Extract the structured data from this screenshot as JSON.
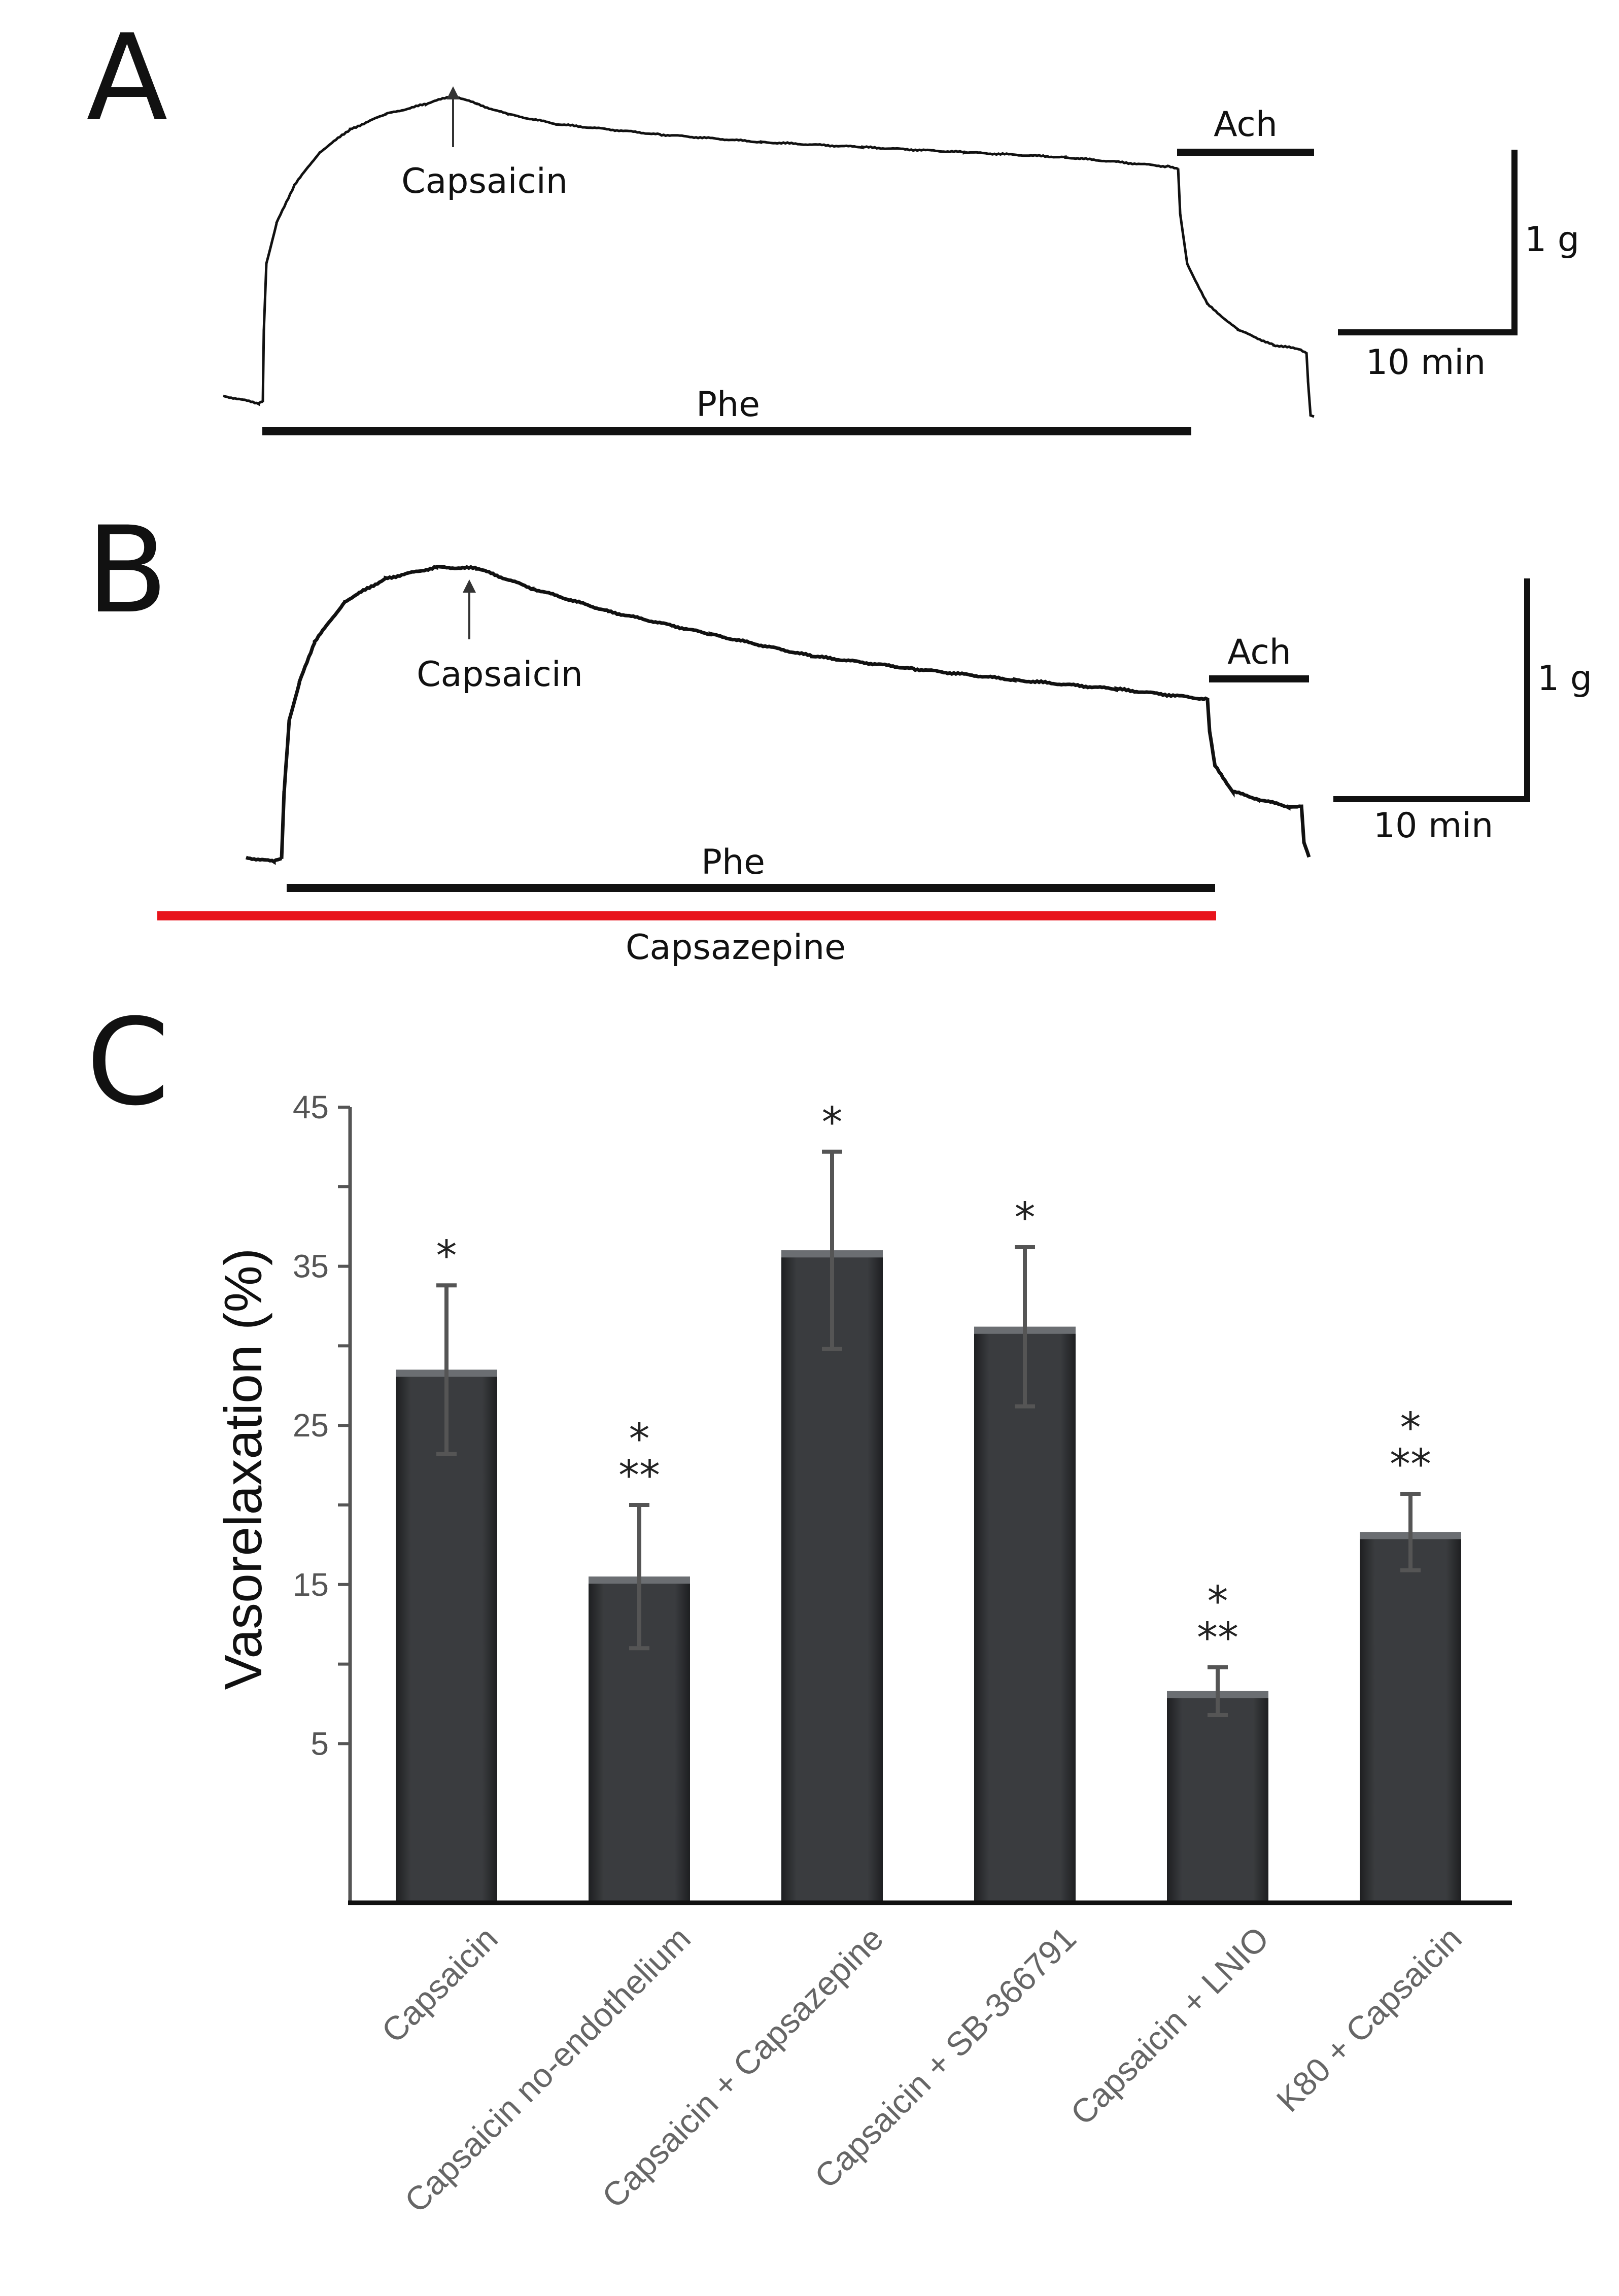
{
  "panels": {
    "a": {
      "letter": "A",
      "capsaicin_label": "Capsaicin",
      "ach_label": "Ach",
      "phe_label": "Phe",
      "scale_y_label": "1 g",
      "scale_x_label": "10 min"
    },
    "b": {
      "letter": "B",
      "capsaicin_label": "Capsaicin",
      "ach_label": "Ach",
      "phe_label": "Phe",
      "capsazepine_label": "Capsazepine",
      "scale_y_label": "1 g",
      "scale_x_label": "10 min",
      "capsazepine_color": "#e8141c"
    },
    "c": {
      "letter": "C"
    }
  },
  "chart_data": {
    "type": "bar",
    "title": "",
    "xlabel": "",
    "ylabel": "Vasorelaxation (%)",
    "ylim": [
      -5,
      45
    ],
    "yticks": [
      5,
      15,
      25,
      35,
      45
    ],
    "categories": [
      "Capsaicin",
      "Capsaicin no-endothelium",
      "Capsaicin + Capsazepine",
      "Capsaicin + SB-366791",
      "Capsaicin + LNIO",
      "K80 + Capsaicin"
    ],
    "values": [
      28.5,
      15.5,
      36,
      31.2,
      8.3,
      18.3
    ],
    "errors": [
      5.3,
      4.5,
      6.2,
      5.0,
      1.5,
      2.4
    ],
    "significance": [
      [
        "*"
      ],
      [
        "*",
        "**"
      ],
      [
        "*"
      ],
      [
        "*"
      ],
      [
        "*",
        "**"
      ],
      [
        "*",
        "**"
      ]
    ],
    "bar_color": "#3a3c3f",
    "error_color": "#555555"
  }
}
